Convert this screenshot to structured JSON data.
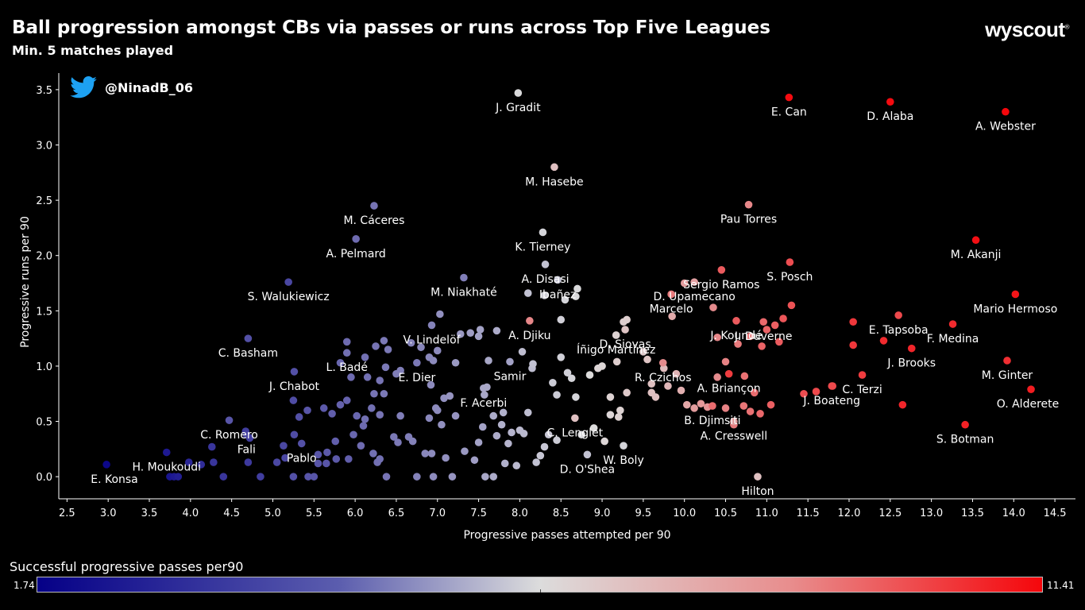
{
  "header": {
    "title": "Ball progression amongst CBs via passes or runs across Top Five Leagues",
    "subtitle": "Min. 5 matches played",
    "brand": "wyscout",
    "brand_mark": "®",
    "handle": "@NinadB_06",
    "handle_icon": "twitter-bird-icon"
  },
  "colorbar": {
    "label": "Successful progressive passes per90",
    "min": "1.74",
    "max": "11.41",
    "colors": [
      "#050087",
      "#dcdcdc",
      "#f5060b"
    ]
  },
  "chart_data": {
    "type": "scatter",
    "title": "Ball progression amongst CBs via passes or runs across Top Five Leagues",
    "subtitle": "Min. 5 matches played",
    "xlabel": "Progressive passes attempted per 90",
    "ylabel": "Progressive runs per 90",
    "xlim": [
      2.4,
      14.75
    ],
    "ylim": [
      -0.2,
      3.65
    ],
    "xticks": [
      "2.5",
      "3.0",
      "3.5",
      "4.0",
      "4.5",
      "5.0",
      "5.5",
      "6.0",
      "6.5",
      "7.0",
      "7.5",
      "8.0",
      "8.5",
      "9.0",
      "9.5",
      "10.0",
      "10.5",
      "11.0",
      "11.5",
      "12.0",
      "12.5",
      "13.0",
      "13.5",
      "14.0",
      "14.5"
    ],
    "yticks": [
      "0.0",
      "0.5",
      "1.0",
      "1.5",
      "2.0",
      "2.5",
      "3.0",
      "3.5"
    ],
    "grid": false,
    "color_range": [
      1.74,
      11.41
    ],
    "labeled_points": [
      {
        "name": "J. Gradit",
        "x": 7.98,
        "y": 3.47,
        "c": 6.5
      },
      {
        "name": "E. Can",
        "x": 11.27,
        "y": 3.43,
        "c": 11.3
      },
      {
        "name": "D. Alaba",
        "x": 12.5,
        "y": 3.39,
        "c": 11.3
      },
      {
        "name": "A. Webster",
        "x": 13.9,
        "y": 3.3,
        "c": 11.4
      },
      {
        "name": "M. Hasebe",
        "x": 8.42,
        "y": 2.8,
        "c": 7.2
      },
      {
        "name": "Pau Torres",
        "x": 10.78,
        "y": 2.46,
        "c": 8.5
      },
      {
        "name": "M. Cáceres",
        "x": 6.23,
        "y": 2.45,
        "c": 4.3
      },
      {
        "name": "A. Pelmard",
        "x": 6.01,
        "y": 2.15,
        "c": 4.1
      },
      {
        "name": "K. Tierney",
        "x": 8.28,
        "y": 2.21,
        "c": 6.4
      },
      {
        "name": "M. Akanji",
        "x": 13.54,
        "y": 2.14,
        "c": 11.2
      },
      {
        "name": "A. Disasi",
        "x": 8.31,
        "y": 1.92,
        "c": 6.0
      },
      {
        "name": "Sergio Ramos",
        "x": 10.45,
        "y": 1.87,
        "c": 9.5
      },
      {
        "name": "S. Posch",
        "x": 11.28,
        "y": 1.94,
        "c": 9.8
      },
      {
        "name": "Ibañez",
        "x": 8.46,
        "y": 1.78,
        "c": 6.0
      },
      {
        "name": "M. Niakhaté",
        "x": 7.32,
        "y": 1.8,
        "c": 4.5
      },
      {
        "name": "S. Walukiewicz",
        "x": 5.19,
        "y": 1.76,
        "c": 3.3
      },
      {
        "name": "D. Upamecano",
        "x": 10.12,
        "y": 1.76,
        "c": 7.9
      },
      {
        "name": "Marcelo",
        "x": 9.84,
        "y": 1.65,
        "c": 8.8
      },
      {
        "name": "Mario Hermoso",
        "x": 14.02,
        "y": 1.65,
        "c": 11.1
      },
      {
        "name": "J. Koundé",
        "x": 10.63,
        "y": 1.41,
        "c": 9.5
      },
      {
        "name": "E. Tapsoba",
        "x": 12.6,
        "y": 1.46,
        "c": 9.9
      },
      {
        "name": "A. Djiku",
        "x": 8.12,
        "y": 1.41,
        "c": 8.5
      },
      {
        "name": "J. Duverne",
        "x": 10.96,
        "y": 1.4,
        "c": 9.2
      },
      {
        "name": "V. Lindelöf",
        "x": 6.93,
        "y": 1.37,
        "c": 4.6
      },
      {
        "name": "D. Siovas",
        "x": 9.28,
        "y": 1.33,
        "c": 7.1
      },
      {
        "name": "Íñigo Martínez",
        "x": 9.17,
        "y": 1.28,
        "c": 6.8
      },
      {
        "name": "F. Medina",
        "x": 13.26,
        "y": 1.38,
        "c": 10.6
      },
      {
        "name": "C. Basham",
        "x": 4.7,
        "y": 1.25,
        "c": 3.5
      },
      {
        "name": "L. Badé",
        "x": 5.9,
        "y": 1.12,
        "c": 4.2
      },
      {
        "name": "R. Czichos",
        "x": 9.74,
        "y": 1.03,
        "c": 8.4
      },
      {
        "name": "J. Brooks",
        "x": 12.76,
        "y": 1.16,
        "c": 10.7
      },
      {
        "name": "A. Briançon",
        "x": 10.54,
        "y": 0.93,
        "c": 10.2
      },
      {
        "name": "Samir",
        "x": 7.88,
        "y": 1.04,
        "c": 5.3
      },
      {
        "name": "M. Ginter",
        "x": 13.92,
        "y": 1.05,
        "c": 10.5
      },
      {
        "name": "E. Dier",
        "x": 6.75,
        "y": 1.03,
        "c": 4.4
      },
      {
        "name": "F. Acerbi",
        "x": 7.56,
        "y": 0.8,
        "c": 5.4
      },
      {
        "name": "J. Chabot",
        "x": 5.26,
        "y": 0.95,
        "c": 3.5
      },
      {
        "name": "C. Terzi",
        "x": 12.16,
        "y": 0.92,
        "c": 10.2
      },
      {
        "name": "O. Alderete",
        "x": 14.21,
        "y": 0.79,
        "c": 10.9
      },
      {
        "name": "B. Djimsiti",
        "x": 10.34,
        "y": 0.64,
        "c": 9.1
      },
      {
        "name": "J. Boateng",
        "x": 11.79,
        "y": 0.82,
        "c": 9.9
      },
      {
        "name": "C. Lenglet",
        "x": 8.67,
        "y": 0.53,
        "c": 7.2
      },
      {
        "name": "C. Romero",
        "x": 4.47,
        "y": 0.51,
        "c": 3.6
      },
      {
        "name": "S. Botman",
        "x": 13.41,
        "y": 0.47,
        "c": 10.8
      },
      {
        "name": "A. Cresswell",
        "x": 10.6,
        "y": 0.5,
        "c": 8.0
      },
      {
        "name": "H. Moukoudi",
        "x": 3.71,
        "y": 0.22,
        "c": 2.3
      },
      {
        "name": "Fali",
        "x": 4.68,
        "y": 0.38,
        "c": 3.2
      },
      {
        "name": "Pablo",
        "x": 5.35,
        "y": 0.3,
        "c": 3.5
      },
      {
        "name": "W. Boly",
        "x": 9.26,
        "y": 0.28,
        "c": 6.4
      },
      {
        "name": "E. Konsa",
        "x": 2.98,
        "y": 0.11,
        "c": 1.9
      },
      {
        "name": "D. O'Shea",
        "x": 8.82,
        "y": 0.2,
        "c": 6.0
      },
      {
        "name": "Hilton",
        "x": 10.89,
        "y": 0.0,
        "c": 7.2
      }
    ],
    "points": [
      [
        3.75,
        0.0,
        2.2
      ],
      [
        3.8,
        0.0,
        2.3
      ],
      [
        3.85,
        0.0,
        2.4
      ],
      [
        3.98,
        0.13,
        2.6
      ],
      [
        4.13,
        0.11,
        2.7
      ],
      [
        4.28,
        0.13,
        2.9
      ],
      [
        4.4,
        0.0,
        2.9
      ],
      [
        4.7,
        0.13,
        3.0
      ],
      [
        4.85,
        0.0,
        3.1
      ],
      [
        5.05,
        0.13,
        3.3
      ],
      [
        5.13,
        0.28,
        3.3
      ],
      [
        5.15,
        0.17,
        3.3
      ],
      [
        5.25,
        0.0,
        3.5
      ],
      [
        5.43,
        0.0,
        3.6
      ],
      [
        5.5,
        0.0,
        3.6
      ],
      [
        5.55,
        0.12,
        3.6
      ],
      [
        5.65,
        0.12,
        3.6
      ],
      [
        5.77,
        0.16,
        3.7
      ],
      [
        5.92,
        0.16,
        3.8
      ],
      [
        4.72,
        0.35,
        3.1
      ],
      [
        4.67,
        0.41,
        3.1
      ],
      [
        4.26,
        0.27,
        2.9
      ],
      [
        5.26,
        0.38,
        3.4
      ],
      [
        5.32,
        0.54,
        3.5
      ],
      [
        5.42,
        0.6,
        3.6
      ],
      [
        5.25,
        0.69,
        3.4
      ],
      [
        5.55,
        0.2,
        3.6
      ],
      [
        5.66,
        0.22,
        3.7
      ],
      [
        5.76,
        0.32,
        3.8
      ],
      [
        5.62,
        0.62,
        3.7
      ],
      [
        5.72,
        0.57,
        3.8
      ],
      [
        5.82,
        0.65,
        3.9
      ],
      [
        5.9,
        0.69,
        3.9
      ],
      [
        5.98,
        0.38,
        4.0
      ],
      [
        6.02,
        0.55,
        4.0
      ],
      [
        6.1,
        0.46,
        4.1
      ],
      [
        6.22,
        0.21,
        4.2
      ],
      [
        6.27,
        0.13,
        4.2
      ],
      [
        6.3,
        0.16,
        4.2
      ],
      [
        6.38,
        0.0,
        4.3
      ],
      [
        6.07,
        0.28,
        4.1
      ],
      [
        6.12,
        0.52,
        4.2
      ],
      [
        6.2,
        0.62,
        4.2
      ],
      [
        6.3,
        0.56,
        4.3
      ],
      [
        6.47,
        0.36,
        4.4
      ],
      [
        6.52,
        0.31,
        4.4
      ],
      [
        6.55,
        0.55,
        4.5
      ],
      [
        6.65,
        0.36,
        4.5
      ],
      [
        6.7,
        0.32,
        4.6
      ],
      [
        6.75,
        0.0,
        4.6
      ],
      [
        6.85,
        0.21,
        4.7
      ],
      [
        6.9,
        0.53,
        4.7
      ],
      [
        6.93,
        0.21,
        4.8
      ],
      [
        6.95,
        0.0,
        4.8
      ],
      [
        7.0,
        0.6,
        4.8
      ],
      [
        7.05,
        0.47,
        4.9
      ],
      [
        7.1,
        0.17,
        4.9
      ],
      [
        7.18,
        0.0,
        5.0
      ],
      [
        7.22,
        0.55,
        5.0
      ],
      [
        7.33,
        0.23,
        5.1
      ],
      [
        7.45,
        0.15,
        5.2
      ],
      [
        7.5,
        0.31,
        5.3
      ],
      [
        7.55,
        0.45,
        5.3
      ],
      [
        7.58,
        0.0,
        5.4
      ],
      [
        7.68,
        0.0,
        5.5
      ],
      [
        7.72,
        0.37,
        5.5
      ],
      [
        7.78,
        0.47,
        5.6
      ],
      [
        7.82,
        0.12,
        5.6
      ],
      [
        7.86,
        0.3,
        5.7
      ],
      [
        5.82,
        1.03,
        4.0
      ],
      [
        5.9,
        1.22,
        4.1
      ],
      [
        5.95,
        0.9,
        4.1
      ],
      [
        6.15,
        0.9,
        4.2
      ],
      [
        6.23,
        0.75,
        4.3
      ],
      [
        6.3,
        0.87,
        4.3
      ],
      [
        6.35,
        0.75,
        4.4
      ],
      [
        6.37,
        0.99,
        4.4
      ],
      [
        6.35,
        1.23,
        4.4
      ],
      [
        6.25,
        1.18,
        4.3
      ],
      [
        6.92,
        0.83,
        4.8
      ],
      [
        6.95,
        1.05,
        4.8
      ],
      [
        6.98,
        0.62,
        4.8
      ],
      [
        7.03,
        1.47,
        4.9
      ],
      [
        7.08,
        0.71,
        4.9
      ],
      [
        7.15,
        0.73,
        5.0
      ],
      [
        7.22,
        1.03,
        5.1
      ],
      [
        7.28,
        1.29,
        5.1
      ],
      [
        7.4,
        1.3,
        5.2
      ],
      [
        7.57,
        0.74,
        5.4
      ],
      [
        7.6,
        0.81,
        5.4
      ],
      [
        7.68,
        0.55,
        5.5
      ],
      [
        7.8,
        0.58,
        5.6
      ],
      [
        7.9,
        0.4,
        5.7
      ],
      [
        7.96,
        0.1,
        5.8
      ],
      [
        8.0,
        0.42,
        5.8
      ],
      [
        8.05,
        0.39,
        5.8
      ],
      [
        8.1,
        0.58,
        5.9
      ],
      [
        8.15,
        0.98,
        5.9
      ],
      [
        8.2,
        0.13,
        6.0
      ],
      [
        8.25,
        0.19,
        6.1
      ],
      [
        8.3,
        0.27,
        6.1
      ],
      [
        8.35,
        0.38,
        6.1
      ],
      [
        8.45,
        0.33,
        6.2
      ],
      [
        8.4,
        0.85,
        6.2
      ],
      [
        8.45,
        0.74,
        6.2
      ],
      [
        8.5,
        1.08,
        6.3
      ],
      [
        8.58,
        0.94,
        6.3
      ],
      [
        8.63,
        0.89,
        6.4
      ],
      [
        8.68,
        0.72,
        6.4
      ],
      [
        8.75,
        0.38,
        6.5
      ],
      [
        8.85,
        0.92,
        6.6
      ],
      [
        8.9,
        0.44,
        6.6
      ],
      [
        8.95,
        0.98,
        6.7
      ],
      [
        9.03,
        0.32,
        6.7
      ],
      [
        9.1,
        0.56,
        6.7
      ],
      [
        9.22,
        0.6,
        6.8
      ],
      [
        9.2,
        0.54,
        6.8
      ],
      [
        8.03,
        1.13,
        5.9
      ],
      [
        8.16,
        1.02,
        6.0
      ],
      [
        9.5,
        1.13,
        7.0
      ],
      [
        9.6,
        0.84,
        7.2
      ],
      [
        9.65,
        0.72,
        7.2
      ],
      [
        9.8,
        0.82,
        7.4
      ],
      [
        9.9,
        0.93,
        7.5
      ],
      [
        9.96,
        0.78,
        7.6
      ],
      [
        10.03,
        0.65,
        7.8
      ],
      [
        10.12,
        0.62,
        8.0
      ],
      [
        10.2,
        0.66,
        8.1
      ],
      [
        10.28,
        0.63,
        8.2
      ],
      [
        10.4,
        0.9,
        8.4
      ],
      [
        10.5,
        1.04,
        8.6
      ],
      [
        10.5,
        0.62,
        8.6
      ],
      [
        10.6,
        0.47,
        8.8
      ],
      [
        10.72,
        0.64,
        8.9
      ],
      [
        10.8,
        0.59,
        9.0
      ],
      [
        10.85,
        0.76,
        9.1
      ],
      [
        10.92,
        0.57,
        9.2
      ],
      [
        10.65,
        1.2,
        8.8
      ],
      [
        10.8,
        1.27,
        8.9
      ],
      [
        11.0,
        1.33,
        9.3
      ],
      [
        11.1,
        1.37,
        9.4
      ],
      [
        11.2,
        1.43,
        9.6
      ],
      [
        11.3,
        1.55,
        9.7
      ],
      [
        11.45,
        0.75,
        9.8
      ],
      [
        11.6,
        0.77,
        9.9
      ],
      [
        11.8,
        0.82,
        10.0
      ],
      [
        12.05,
        1.4,
        10.3
      ],
      [
        12.05,
        1.19,
        10.3
      ],
      [
        12.42,
        1.23,
        10.6
      ],
      [
        12.65,
        0.65,
        10.7
      ],
      [
        9.0,
        1.0,
        6.7
      ],
      [
        9.1,
        0.72,
        6.8
      ],
      [
        9.18,
        1.04,
        6.9
      ],
      [
        9.3,
        0.76,
        7.0
      ],
      [
        9.55,
        1.06,
        7.1
      ],
      [
        9.6,
        0.76,
        7.2
      ],
      [
        9.75,
        0.98,
        7.3
      ],
      [
        9.85,
        1.45,
        7.7
      ],
      [
        10.0,
        1.75,
        8.0
      ],
      [
        10.35,
        1.53,
        8.4
      ],
      [
        10.4,
        1.26,
        8.5
      ],
      [
        10.73,
        0.91,
        9.0
      ],
      [
        10.94,
        1.18,
        9.3
      ],
      [
        11.15,
        1.22,
        9.5
      ],
      [
        11.05,
        0.65,
        9.4
      ],
      [
        9.26,
        1.4,
        6.9
      ],
      [
        9.3,
        1.42,
        6.9
      ],
      [
        6.12,
        1.08,
        4.2
      ],
      [
        6.4,
        1.15,
        4.4
      ],
      [
        6.5,
        0.93,
        4.5
      ],
      [
        6.55,
        0.96,
        4.5
      ],
      [
        6.68,
        1.21,
        4.6
      ],
      [
        6.8,
        1.17,
        4.7
      ],
      [
        6.9,
        1.08,
        4.7
      ],
      [
        7.0,
        1.14,
        4.8
      ],
      [
        7.5,
        1.27,
        5.3
      ],
      [
        7.52,
        1.33,
        5.3
      ],
      [
        7.62,
        1.05,
        5.4
      ],
      [
        7.72,
        1.32,
        5.5
      ],
      [
        8.3,
        1.64,
        6.3
      ],
      [
        8.5,
        1.42,
        6.3
      ],
      [
        8.55,
        1.6,
        6.4
      ],
      [
        8.7,
        1.7,
        6.5
      ],
      [
        8.1,
        1.66,
        6.0
      ],
      [
        8.68,
        1.63,
        6.5
      ]
    ]
  }
}
